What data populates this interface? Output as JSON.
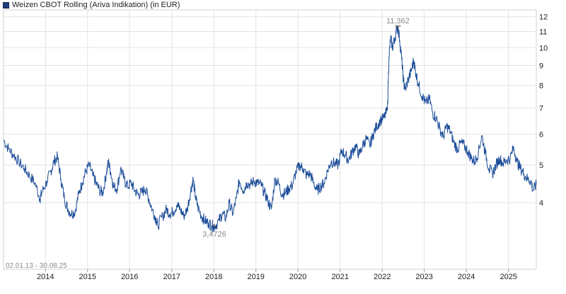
{
  "chart_data": {
    "type": "line",
    "legend": "Weizen CBOT Rolling (Ariva Indikation) (in EUR)",
    "y_scale": "log",
    "ylim": [
      2.7,
      12.5
    ],
    "grid": true,
    "legend_position": "top-left",
    "y_ticks": [
      4,
      5,
      6,
      7,
      8,
      9,
      10,
      11,
      12
    ],
    "x_ticks": [
      "2014",
      "2015",
      "2016",
      "2017",
      "2018",
      "2019",
      "2020",
      "2021",
      "2022",
      "2023",
      "2024",
      "2025"
    ],
    "date_range": "02.01.13 - 30.08.25",
    "max_annotation": {
      "label": "11,362",
      "date": "2022-05-17",
      "value": 11.362
    },
    "min_annotation": {
      "label": "3,4726",
      "date": "2018-01-05",
      "value": 3.4726
    },
    "series": [
      {
        "color": "#1f4f9a",
        "points": [
          [
            "2013-01-02",
            5.8
          ],
          [
            "2013-02-15",
            5.5
          ],
          [
            "2013-04-01",
            5.3
          ],
          [
            "2013-05-15",
            5.1
          ],
          [
            "2013-07-01",
            4.9
          ],
          [
            "2013-08-15",
            4.7
          ],
          [
            "2013-10-01",
            4.5
          ],
          [
            "2013-11-15",
            4.1
          ],
          [
            "2013-12-01",
            4.25
          ],
          [
            "2014-01-15",
            4.55
          ],
          [
            "2014-02-15",
            4.8
          ],
          [
            "2014-03-15",
            5.1
          ],
          [
            "2014-04-15",
            5.25
          ],
          [
            "2014-05-15",
            4.6
          ],
          [
            "2014-06-15",
            4.1
          ],
          [
            "2014-07-15",
            3.85
          ],
          [
            "2014-08-15",
            3.75
          ],
          [
            "2014-09-15",
            3.8
          ],
          [
            "2014-10-15",
            4.2
          ],
          [
            "2014-11-15",
            4.5
          ],
          [
            "2014-12-15",
            4.8
          ],
          [
            "2015-01-15",
            5.0
          ],
          [
            "2015-02-15",
            4.7
          ],
          [
            "2015-03-15",
            4.5
          ],
          [
            "2015-04-15",
            4.3
          ],
          [
            "2015-05-15",
            4.25
          ],
          [
            "2015-06-15",
            4.8
          ],
          [
            "2015-07-01",
            5.1
          ],
          [
            "2015-07-20",
            4.8
          ],
          [
            "2015-08-15",
            4.4
          ],
          [
            "2015-09-15",
            4.35
          ],
          [
            "2015-10-15",
            4.9
          ],
          [
            "2015-11-15",
            4.6
          ],
          [
            "2015-12-15",
            4.4
          ],
          [
            "2016-01-15",
            4.5
          ],
          [
            "2016-02-15",
            4.3
          ],
          [
            "2016-03-15",
            4.2
          ],
          [
            "2016-04-15",
            4.25
          ],
          [
            "2016-05-15",
            4.35
          ],
          [
            "2016-06-15",
            4.1
          ],
          [
            "2016-07-15",
            3.85
          ],
          [
            "2016-08-15",
            3.65
          ],
          [
            "2016-09-01",
            3.5
          ],
          [
            "2016-10-15",
            3.7
          ],
          [
            "2016-11-15",
            3.85
          ],
          [
            "2016-12-15",
            3.75
          ],
          [
            "2017-01-15",
            3.8
          ],
          [
            "2017-02-15",
            3.95
          ],
          [
            "2017-03-15",
            3.85
          ],
          [
            "2017-04-15",
            3.7
          ],
          [
            "2017-05-15",
            3.85
          ],
          [
            "2017-06-15",
            4.3
          ],
          [
            "2017-07-05",
            4.6
          ],
          [
            "2017-07-25",
            4.15
          ],
          [
            "2017-08-15",
            3.9
          ],
          [
            "2017-09-15",
            3.7
          ],
          [
            "2017-10-15",
            3.6
          ],
          [
            "2017-11-15",
            3.55
          ],
          [
            "2017-12-15",
            3.5
          ],
          [
            "2018-01-05",
            3.47
          ],
          [
            "2018-02-15",
            3.6
          ],
          [
            "2018-03-15",
            3.75
          ],
          [
            "2018-04-15",
            3.65
          ],
          [
            "2018-05-15",
            4.0
          ],
          [
            "2018-06-15",
            3.75
          ],
          [
            "2018-07-15",
            4.1
          ],
          [
            "2018-08-10",
            4.55
          ],
          [
            "2018-09-15",
            4.3
          ],
          [
            "2018-10-15",
            4.5
          ],
          [
            "2018-11-15",
            4.45
          ],
          [
            "2018-12-15",
            4.55
          ],
          [
            "2019-01-15",
            4.5
          ],
          [
            "2019-02-15",
            4.45
          ],
          [
            "2019-03-15",
            4.25
          ],
          [
            "2019-04-15",
            4.05
          ],
          [
            "2019-05-15",
            3.85
          ],
          [
            "2019-06-15",
            4.6
          ],
          [
            "2019-07-15",
            4.5
          ],
          [
            "2019-08-15",
            4.2
          ],
          [
            "2019-09-15",
            4.25
          ],
          [
            "2019-10-15",
            4.35
          ],
          [
            "2019-11-15",
            4.45
          ],
          [
            "2019-12-15",
            4.8
          ],
          [
            "2020-01-15",
            5.0
          ],
          [
            "2020-02-15",
            4.9
          ],
          [
            "2020-03-15",
            4.7
          ],
          [
            "2020-04-15",
            4.75
          ],
          [
            "2020-05-15",
            4.5
          ],
          [
            "2020-06-15",
            4.3
          ],
          [
            "2020-07-15",
            4.4
          ],
          [
            "2020-08-15",
            4.5
          ],
          [
            "2020-09-15",
            4.85
          ],
          [
            "2020-10-15",
            5.1
          ],
          [
            "2020-11-15",
            5.05
          ],
          [
            "2020-12-15",
            5.0
          ],
          [
            "2021-01-15",
            5.45
          ],
          [
            "2021-02-15",
            5.3
          ],
          [
            "2021-03-15",
            5.15
          ],
          [
            "2021-04-15",
            5.4
          ],
          [
            "2021-05-15",
            5.6
          ],
          [
            "2021-06-15",
            5.3
          ],
          [
            "2021-07-15",
            5.6
          ],
          [
            "2021-08-15",
            5.85
          ],
          [
            "2021-09-15",
            5.6
          ],
          [
            "2021-10-15",
            6.0
          ],
          [
            "2021-11-15",
            6.3
          ],
          [
            "2021-12-15",
            6.5
          ],
          [
            "2022-01-15",
            6.6
          ],
          [
            "2022-02-15",
            6.9
          ],
          [
            "2022-03-01",
            9.5
          ],
          [
            "2022-03-15",
            10.6
          ],
          [
            "2022-04-01",
            10.0
          ],
          [
            "2022-04-20",
            10.6
          ],
          [
            "2022-05-17",
            11.36
          ],
          [
            "2022-06-01",
            10.5
          ],
          [
            "2022-06-20",
            9.3
          ],
          [
            "2022-07-05",
            8.2
          ],
          [
            "2022-07-20",
            7.8
          ],
          [
            "2022-08-15",
            8.3
          ],
          [
            "2022-09-10",
            8.7
          ],
          [
            "2022-10-01",
            9.3
          ],
          [
            "2022-10-20",
            8.6
          ],
          [
            "2022-11-15",
            8.0
          ],
          [
            "2022-12-15",
            7.5
          ],
          [
            "2023-01-15",
            7.2
          ],
          [
            "2023-02-15",
            7.4
          ],
          [
            "2023-03-15",
            6.8
          ],
          [
            "2023-04-15",
            6.6
          ],
          [
            "2023-05-15",
            6.2
          ],
          [
            "2023-06-15",
            5.9
          ],
          [
            "2023-07-15",
            6.3
          ],
          [
            "2023-08-15",
            6.1
          ],
          [
            "2023-09-15",
            5.7
          ],
          [
            "2023-10-15",
            5.5
          ],
          [
            "2023-11-15",
            5.7
          ],
          [
            "2023-12-15",
            5.6
          ],
          [
            "2024-01-15",
            5.4
          ],
          [
            "2024-02-15",
            5.2
          ],
          [
            "2024-03-15",
            5.1
          ],
          [
            "2024-04-15",
            5.4
          ],
          [
            "2024-05-15",
            5.95
          ],
          [
            "2024-06-15",
            5.35
          ],
          [
            "2024-07-15",
            4.9
          ],
          [
            "2024-08-15",
            4.75
          ],
          [
            "2024-09-15",
            5.0
          ],
          [
            "2024-10-15",
            5.2
          ],
          [
            "2024-11-15",
            5.05
          ],
          [
            "2024-12-15",
            5.15
          ],
          [
            "2025-01-15",
            5.2
          ],
          [
            "2025-02-15",
            5.55
          ],
          [
            "2025-03-15",
            5.1
          ],
          [
            "2025-04-15",
            4.9
          ],
          [
            "2025-05-15",
            4.75
          ],
          [
            "2025-06-15",
            4.6
          ],
          [
            "2025-07-15",
            4.55
          ],
          [
            "2025-08-01",
            4.3
          ],
          [
            "2025-08-30",
            4.45
          ]
        ]
      }
    ]
  }
}
